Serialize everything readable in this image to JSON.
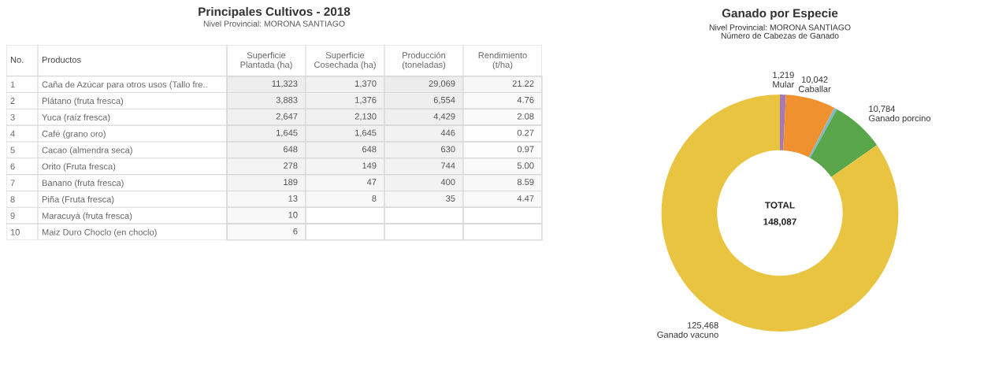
{
  "chart_data": [
    {
      "type": "heatmap",
      "title": "Principales Cultivos - 2018",
      "subtitle": "Nivel Provincial: MORONA SANTIAGO",
      "annotations": [
        "No.",
        "Productos"
      ],
      "categories": [
        "Superficie\nPlantada (ha)",
        "Superficie\nCosechada (ha)",
        "Producción\n(toneladas)",
        "Rendimiento\n(t/ha)"
      ],
      "y2_categories": [
        "1",
        "2",
        "3",
        "4",
        "5",
        "6",
        "7",
        "8",
        "9",
        "10"
      ],
      "y_categories": [
        "Caña de Azúcar para otros usos (Tallo fre..",
        "Plátano (fruta fresca)",
        "Yuca (raíz fresca)",
        "Café (grano oro)",
        "Cacao (almendra seca)",
        "Orito (Fruta fresca)",
        "Banano (fruta fresca)",
        "Piña (Fruta fresca)",
        "Maracuyá (fruta fresca)",
        "Maiz Duro Choclo (en choclo)"
      ],
      "cells": [
        [
          11323,
          1370,
          29069,
          21.22
        ],
        [
          3883,
          1376,
          6554,
          4.76
        ],
        [
          2647,
          2130,
          4429,
          2.08
        ],
        [
          1645,
          1645,
          446,
          0.27
        ],
        [
          648,
          648,
          630,
          0.97
        ],
        [
          278,
          149,
          744,
          5.0
        ],
        [
          189,
          47,
          400,
          8.59
        ],
        [
          13,
          8,
          35,
          4.47
        ],
        [
          10,
          null,
          null,
          null
        ],
        [
          6,
          null,
          null,
          null
        ]
      ],
      "cell_labels": [
        [
          "11,323",
          "1,370",
          "29,069",
          "21.22"
        ],
        [
          "3,883",
          "1,376",
          "6,554",
          "4.76"
        ],
        [
          "2,647",
          "2,130",
          "4,429",
          "2.08"
        ],
        [
          "1,645",
          "1,645",
          "446",
          "0.27"
        ],
        [
          "648",
          "648",
          "630",
          "0.97"
        ],
        [
          "278",
          "149",
          "744",
          "5.00"
        ],
        [
          "189",
          "47",
          "400",
          "8.59"
        ],
        [
          "13",
          "8",
          "35",
          "4.47"
        ],
        [
          "10",
          null,
          null,
          null
        ],
        [
          "6",
          null,
          null,
          null
        ]
      ]
    },
    {
      "type": "donut",
      "title": "Ganado por Especie",
      "subtitle": "Nivel Provincial: MORONA SANTIAGO\nNúmero de Cabezas de Ganado",
      "categories": [
        "Mular",
        "Caballar",
        null,
        "Ganado porcino",
        "Ganado vacuno"
      ],
      "values": [
        1219,
        10042,
        574,
        10784,
        125468
      ],
      "colors": [
        "#a77bb0",
        "#f0912f",
        "#7fb7c9",
        "#58a54a",
        "#e9c440"
      ],
      "value_labels": [
        "1,219",
        "10,042",
        null,
        "10,784",
        "125,468"
      ],
      "annotations": [
        "TOTAL",
        "148,087"
      ]
    }
  ]
}
